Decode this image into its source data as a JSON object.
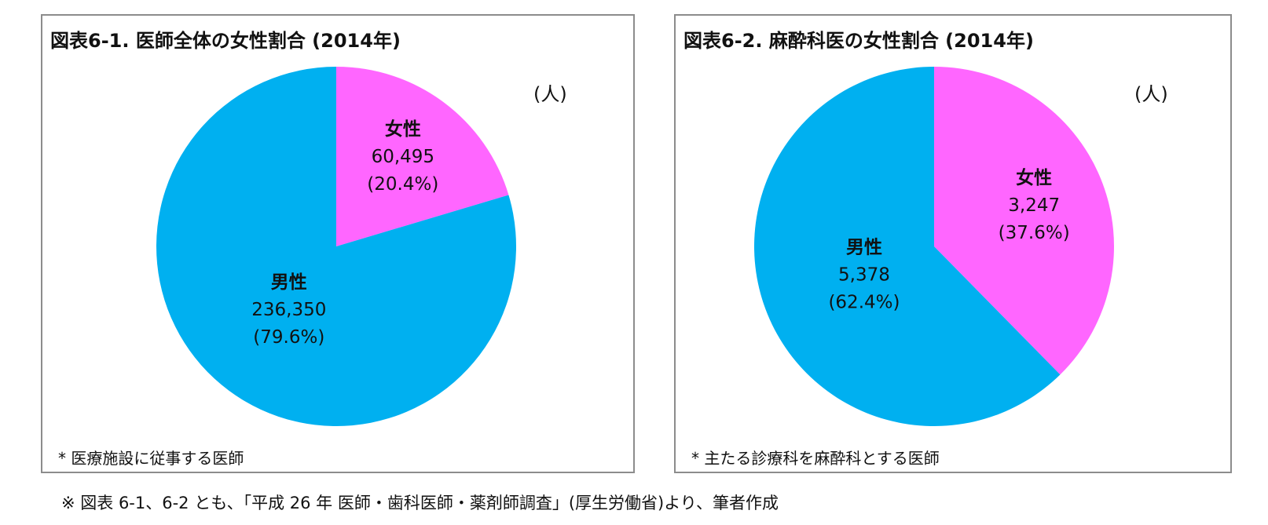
{
  "chart_data": [
    {
      "type": "pie",
      "title": "図表6-1. 医師全体の女性割合 (2014年)",
      "unit_label": "(人)",
      "note": "* 医療施設に従事する医師",
      "slices": [
        {
          "name": "女性",
          "value": 60495,
          "value_label": "60,495",
          "percent_label": "(20.4%)",
          "color": "#ff66ff"
        },
        {
          "name": "男性",
          "value": 236350,
          "value_label": "236,350",
          "percent_label": "(79.6%)",
          "color": "#00b0f0"
        }
      ]
    },
    {
      "type": "pie",
      "title": "図表6-2. 麻酔科医の女性割合 (2014年)",
      "unit_label": "(人)",
      "note": "* 主たる診療科を麻酔科とする医師",
      "slices": [
        {
          "name": "女性",
          "value": 3247,
          "value_label": "3,247",
          "percent_label": "(37.6%)",
          "color": "#ff66ff"
        },
        {
          "name": "男性",
          "value": 5378,
          "value_label": "5,378",
          "percent_label": "(62.4%)",
          "color": "#00b0f0"
        }
      ]
    }
  ],
  "footnote": "※ 図表 6-1、6-2 とも、「平成 26 年 医師・歯科医師・薬剤師調査」(厚生労働省)より、筆者作成"
}
